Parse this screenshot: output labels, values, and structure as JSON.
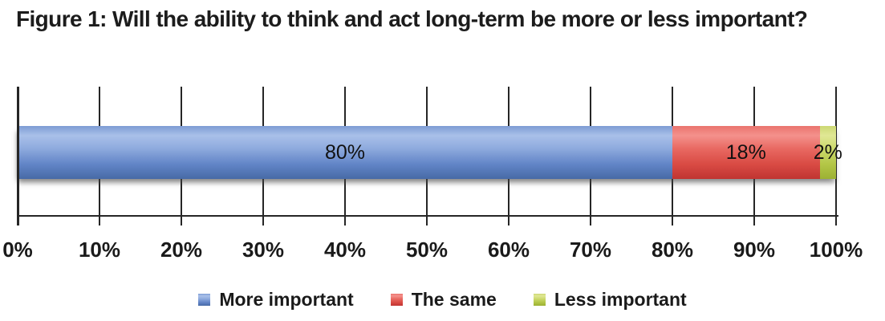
{
  "title": "Figure 1: Will the ability to think and act long-term be more or less important?",
  "chart_data": {
    "type": "bar",
    "orientation": "horizontal-stacked",
    "title": "Figure 1: Will the ability to think and act long-term be more or less important?",
    "series": [
      {
        "name": "More important",
        "value": 80,
        "label": "80%",
        "color": "#7e9ed9",
        "gradient": [
          "#7d9cd4",
          "#a9c0e9",
          "#8fabde",
          "#6285c7",
          "#476aa6"
        ]
      },
      {
        "name": "The same",
        "value": 18,
        "label": "18%",
        "color": "#e9625e",
        "gradient": [
          "#ea746e",
          "#f4918c",
          "#e96a63",
          "#d94b44",
          "#c03431"
        ]
      },
      {
        "name": "Less important",
        "value": 2,
        "label": "2%",
        "color": "#c6d465",
        "gradient": [
          "#ccd873",
          "#e0e795",
          "#cdda6e",
          "#b3c647",
          "#9cb133"
        ]
      }
    ],
    "xlim": [
      0,
      100
    ],
    "tick_labels": [
      "0%",
      "10%",
      "20%",
      "30%",
      "40%",
      "50%",
      "60%",
      "70%",
      "80%",
      "90%",
      "100%"
    ],
    "grid": true,
    "legend_position": "bottom",
    "grid_color": "#262626",
    "label_color": "#1a1a1a"
  }
}
